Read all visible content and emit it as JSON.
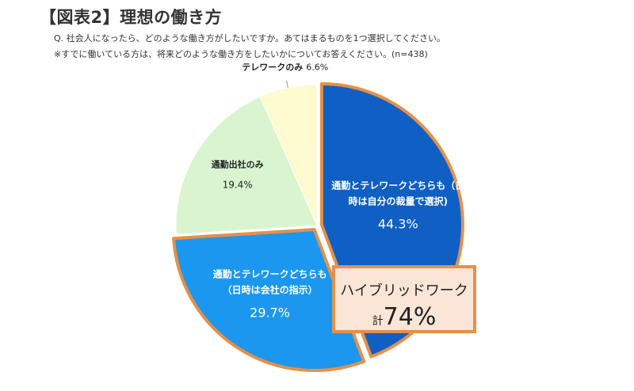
{
  "header": {
    "title": "【図表2】理想の働き方",
    "question": "Q. 社会人になったら、どのような働き方がしたいですか。あてはまるものを1つ選択してください。",
    "note": "※すでに働いている方は、将来どのような働き方をしたいかについてお答えください。(n=438)"
  },
  "chart_data": {
    "type": "pie",
    "start_angle_deg": 0,
    "direction": "clockwise",
    "slices": [
      {
        "label_lines": [
          "通勤とテレワークどちらも（日",
          "時は自分の裁量で選択)"
        ],
        "value": 44.3,
        "value_label": "44.3%",
        "color": "#0f5fc4",
        "text_color": "#ffffff",
        "exploded": true
      },
      {
        "label_lines": [
          "通勤とテレワークどちらも",
          "（日時は会社の指示）"
        ],
        "value": 29.7,
        "value_label": "29.7%",
        "color": "#1b97f0",
        "text_color": "#ffffff",
        "exploded": true
      },
      {
        "label_lines": [
          "通勤出社のみ"
        ],
        "value": 19.4,
        "value_label": "19.4%",
        "color": "#d8f5d0",
        "text_color": "#222222",
        "exploded": false
      },
      {
        "label_lines": [
          "テレワークのみ"
        ],
        "value": 6.6,
        "value_label": "6.6%",
        "color": "#fdfbcf",
        "text_color": "#222222",
        "exploded": false
      }
    ],
    "highlight_color": "#e4904a",
    "callout": {
      "line1": "ハイブリッドワーク",
      "prefix": "計",
      "value_label": "74%",
      "value": 74
    }
  }
}
